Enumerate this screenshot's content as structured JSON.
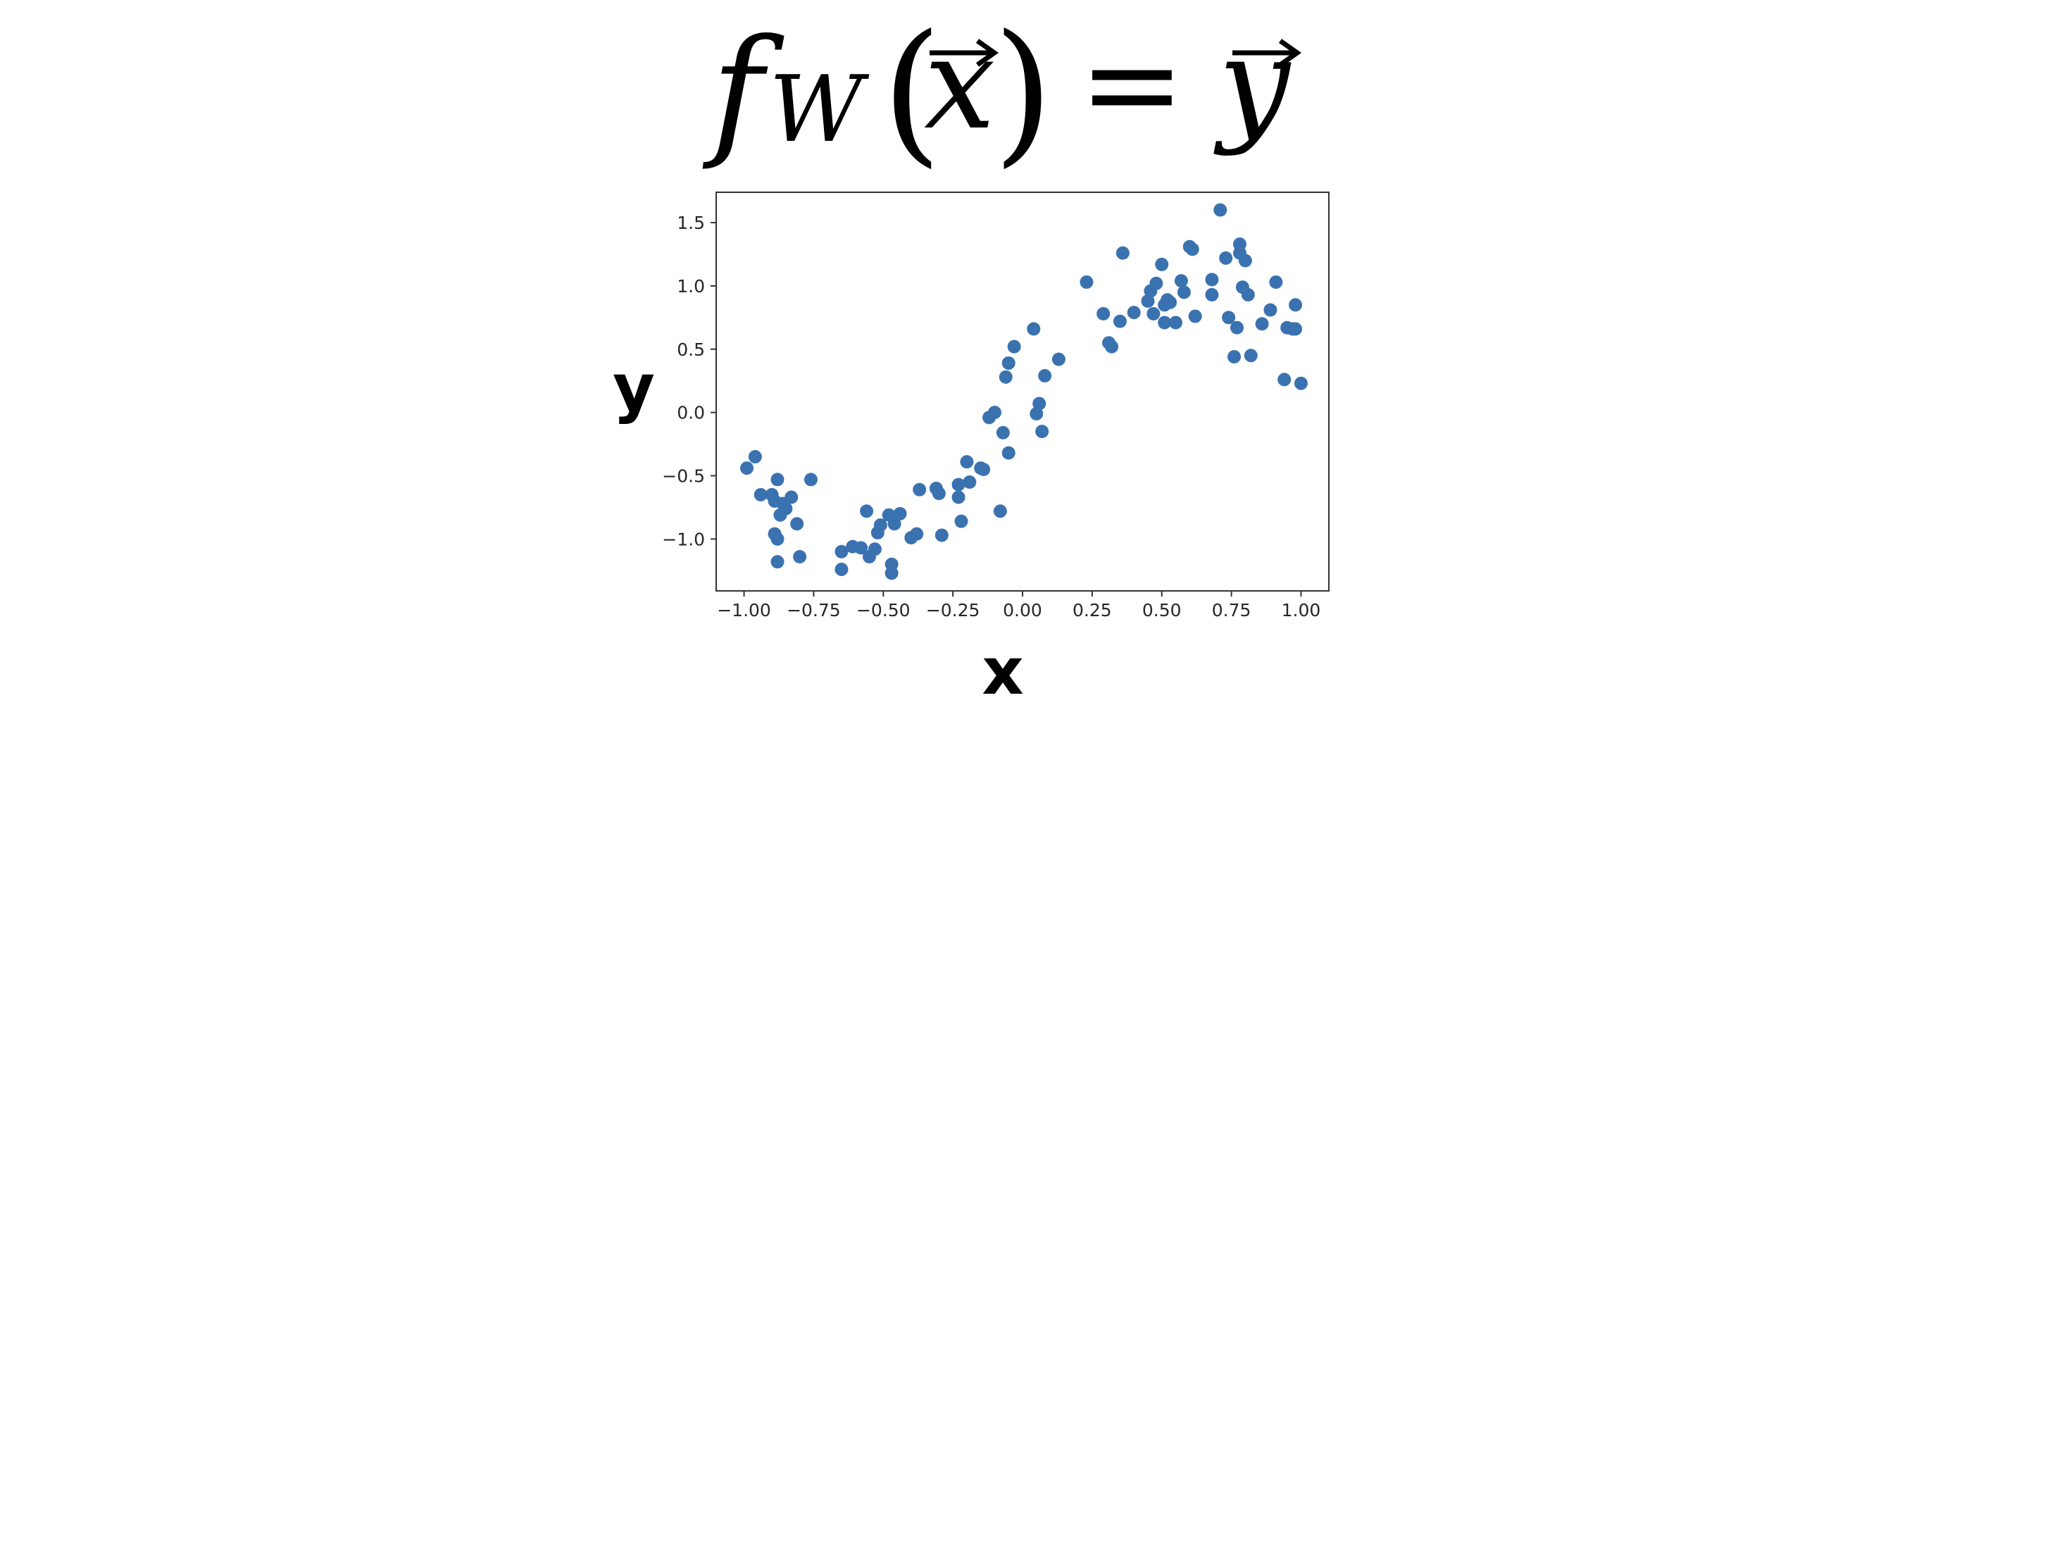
{
  "equation": {
    "f": "f",
    "subscript": "W",
    "open_paren": "(",
    "x": "x",
    "close_paren": ")",
    "equals": "=",
    "y": "y"
  },
  "chart_data": {
    "type": "scatter",
    "title": "",
    "xlabel": "x",
    "ylabel": "y",
    "xlim": [
      -1.1,
      1.1
    ],
    "ylim": [
      -1.41,
      1.74
    ],
    "xticks": [
      -1.0,
      -0.75,
      -0.5,
      -0.25,
      0.0,
      0.25,
      0.5,
      0.75,
      1.0
    ],
    "xtick_labels": [
      "−1.00",
      "−0.75",
      "−0.50",
      "−0.25",
      "0.00",
      "0.25",
      "0.50",
      "0.75",
      "1.00"
    ],
    "yticks": [
      -1.0,
      -0.5,
      0.0,
      0.5,
      1.0,
      1.5
    ],
    "ytick_labels": [
      "−1.0",
      "−0.5",
      "0.0",
      "0.5",
      "1.0",
      "1.5"
    ],
    "grid": false,
    "legend": "none",
    "marker_color": "#3a72b0",
    "series": [
      {
        "x": [
          -0.99,
          -0.96,
          -0.94,
          -0.9,
          -0.89,
          -0.88,
          -0.88,
          -0.88,
          -0.87,
          -0.86,
          -0.85,
          -0.83,
          -0.81,
          -0.8,
          -0.76,
          -0.89,
          -0.65,
          -0.65,
          -0.61,
          -0.58,
          -0.56,
          -0.55,
          -0.53,
          -0.52,
          -0.51,
          -0.48,
          -0.47,
          -0.47,
          -0.46,
          -0.44,
          -0.4,
          -0.38,
          -0.37,
          -0.31,
          -0.3,
          -0.29,
          -0.23,
          -0.23,
          -0.22,
          -0.2,
          -0.19,
          -0.15,
          -0.14,
          -0.12,
          -0.1,
          -0.08,
          -0.07,
          -0.06,
          -0.05,
          -0.05,
          -0.03,
          0.04,
          0.05,
          0.06,
          0.07,
          0.08,
          0.13,
          0.23,
          0.29,
          0.31,
          0.32,
          0.35,
          0.36,
          0.4,
          0.45,
          0.46,
          0.47,
          0.48,
          0.5,
          0.51,
          0.51,
          0.52,
          0.53,
          0.55,
          0.57,
          0.58,
          0.6,
          0.61,
          0.62,
          0.68,
          0.68,
          0.71,
          0.73,
          0.74,
          0.76,
          0.77,
          0.78,
          0.78,
          0.79,
          0.8,
          0.81,
          0.82,
          0.86,
          0.89,
          0.91,
          0.94,
          0.95,
          0.97,
          0.98,
          0.98,
          1.0
        ],
        "y": [
          -0.44,
          -0.35,
          -0.65,
          -0.65,
          -0.96,
          -1.0,
          -1.18,
          -0.53,
          -0.81,
          -0.72,
          -0.76,
          -0.67,
          -0.88,
          -1.14,
          -0.53,
          -0.7,
          -1.1,
          -1.24,
          -1.06,
          -1.07,
          -0.78,
          -1.14,
          -1.08,
          -0.95,
          -0.89,
          -0.81,
          -1.27,
          -1.2,
          -0.88,
          -0.8,
          -0.99,
          -0.96,
          -0.61,
          -0.6,
          -0.64,
          -0.97,
          -0.57,
          -0.67,
          -0.86,
          -0.39,
          -0.55,
          -0.44,
          -0.45,
          -0.04,
          0.0,
          -0.78,
          -0.16,
          0.28,
          0.39,
          -0.32,
          0.52,
          0.66,
          -0.01,
          0.07,
          -0.15,
          0.29,
          0.42,
          1.03,
          0.78,
          0.55,
          0.52,
          0.72,
          1.26,
          0.79,
          0.88,
          0.96,
          0.78,
          1.02,
          1.17,
          0.71,
          0.85,
          0.89,
          0.87,
          0.71,
          1.04,
          0.95,
          1.31,
          1.29,
          0.76,
          1.05,
          0.93,
          1.6,
          1.22,
          0.75,
          0.44,
          0.67,
          1.33,
          1.26,
          0.99,
          1.2,
          0.93,
          0.45,
          0.7,
          0.81,
          1.03,
          0.26,
          0.67,
          0.66,
          0.85,
          0.66,
          0.23
        ]
      }
    ]
  }
}
